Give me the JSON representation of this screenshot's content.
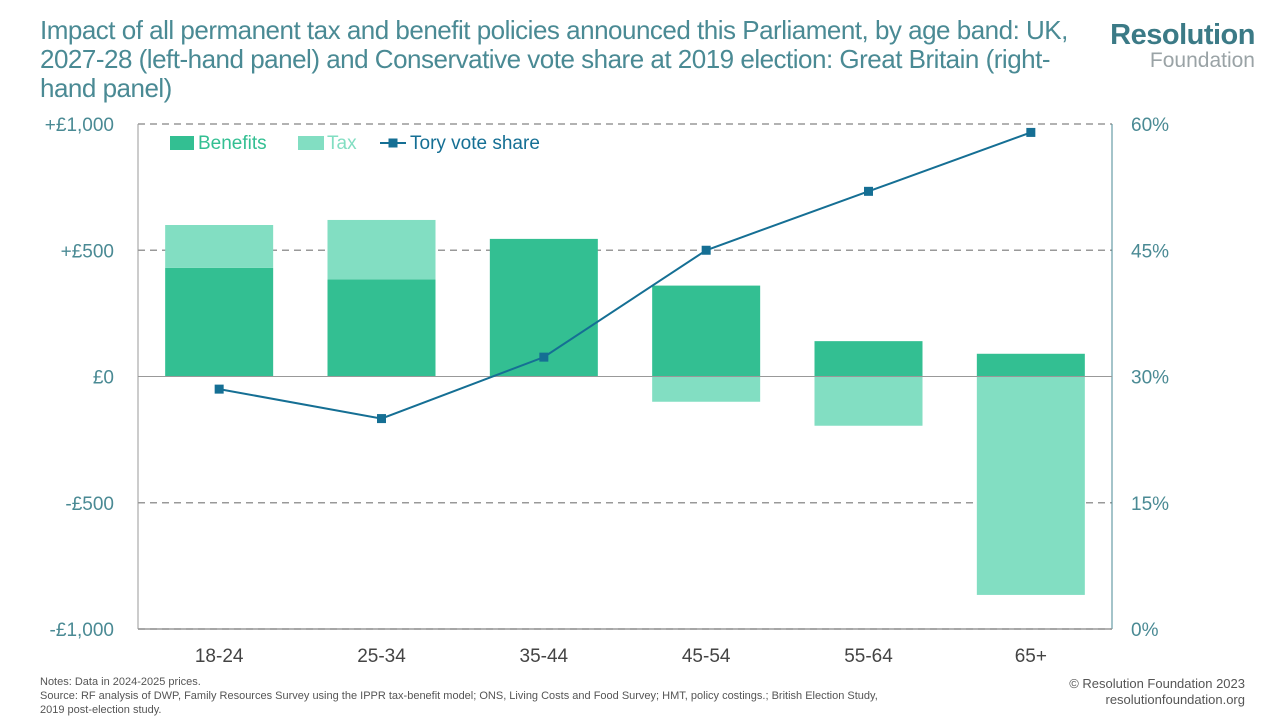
{
  "title": "Impact of all permanent tax and benefit policies announced this Parliament, by age band: UK, 2027-28 (left-hand panel) and Conservative vote share at 2019 election: Great Britain (right-hand panel)",
  "logo": {
    "line1": "Resolution",
    "line2": "Foundation"
  },
  "notes": {
    "line1": "Notes: Data in 2024-2025 prices.",
    "line2": "Source: RF analysis of DWP, Family Resources Survey using the IPPR tax-benefit model; ONS, Living Costs and Food Survey; HMT, policy costings.; British Election Study,",
    "line3": "2019 post-election study."
  },
  "copyright": {
    "line1": "© Resolution Foundation 2023",
    "line2": "resolutionfoundation.org"
  },
  "colors": {
    "benefits": "#33bf92",
    "tax": "#82dec2",
    "line": "#156f94",
    "axis": "#4a8a94",
    "grid": "#999999"
  },
  "chart_data": {
    "type": "bar",
    "categories": [
      "18-24",
      "25-34",
      "35-44",
      "45-54",
      "55-64",
      "65+"
    ],
    "series": [
      {
        "name": "Benefits",
        "kind": "bar",
        "axis": "left",
        "values": [
          430,
          385,
          545,
          360,
          140,
          90
        ]
      },
      {
        "name": "Tax",
        "kind": "bar",
        "axis": "left",
        "values": [
          170,
          235,
          0,
          -100,
          -195,
          -865
        ]
      },
      {
        "name": "Tory vote share",
        "kind": "line",
        "axis": "right",
        "values": [
          28.5,
          25.0,
          32.3,
          45.0,
          52.0,
          59.0
        ]
      }
    ],
    "left_axis": {
      "ylim": [
        -1000,
        1000
      ],
      "ticks": [
        1000,
        500,
        0,
        -500,
        -1000
      ],
      "tick_labels": [
        "+£1,000",
        "+£500",
        "£0",
        "-£500",
        "-£1,000"
      ]
    },
    "right_axis": {
      "ylim": [
        0,
        60
      ],
      "ticks": [
        60,
        45,
        30,
        15,
        0
      ],
      "tick_labels": [
        "60%",
        "45%",
        "30%",
        "15%",
        "0%"
      ]
    },
    "grid": true,
    "legend_position": "top-left"
  }
}
